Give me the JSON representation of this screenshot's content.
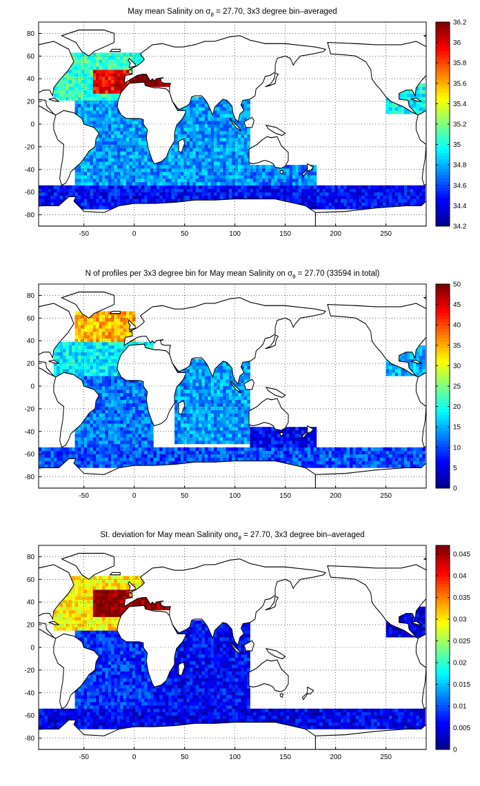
{
  "colormap": [
    "#00008f",
    "#0000ff",
    "#0080ff",
    "#00ffff",
    "#80ff80",
    "#ffff00",
    "#ff8000",
    "#ff0000",
    "#800000"
  ],
  "ocean_color": "#ffffff",
  "land_stroke": "#000000",
  "chart_data": [
    {
      "type": "heatmap",
      "title_prefix": "May mean Salinity on ",
      "title_suffix": " = 27.70, 3x3 degree bin–averaged",
      "xlim": [
        -95,
        290
      ],
      "ylim": [
        -90,
        90
      ],
      "xticks": [
        "-50",
        "0",
        "50",
        "100",
        "150",
        "200",
        "250"
      ],
      "yticks": [
        "80",
        "60",
        "40",
        "20",
        "0",
        "-20",
        "-40",
        "-60",
        "-80"
      ],
      "colorbar": {
        "min": 34.2,
        "max": 36.2,
        "ticks": [
          "36.2",
          "36",
          "35.8",
          "35.6",
          "35.4",
          "35.2",
          "35",
          "34.8",
          "34.6",
          "34.4",
          "34.2"
        ]
      },
      "grid": true,
      "regions": [
        {
          "lon": [
            -80,
            20
          ],
          "lat": [
            20,
            62
          ],
          "value": 35.05
        },
        {
          "lon": [
            -40,
            -5
          ],
          "lat": [
            28,
            48
          ],
          "value": 35.95
        },
        {
          "lon": [
            -20,
            -8
          ],
          "lat": [
            30,
            44
          ],
          "value": 36.1
        },
        {
          "lon": [
            -5,
            38
          ],
          "lat": [
            32,
            44
          ],
          "value": 36.2
        },
        {
          "lon": [
            -60,
            20
          ],
          "lat": [
            -60,
            20
          ],
          "value": 34.75
        },
        {
          "lon": [
            20,
            115
          ],
          "lat": [
            -60,
            25
          ],
          "value": 34.75
        },
        {
          "lon": [
            115,
            180
          ],
          "lat": [
            -60,
            -35
          ],
          "value": 34.7
        },
        {
          "lon": [
            -95,
            290
          ],
          "lat": [
            -75,
            -55
          ],
          "value": 34.45
        },
        {
          "lon": [
            250,
            290
          ],
          "lat": [
            10,
            35
          ],
          "value": 34.95
        }
      ]
    },
    {
      "type": "heatmap",
      "title_prefix": "N of profiles per 3x3 degree bin for May mean Salinity on ",
      "title_suffix": " = 27.70 (33594 in total)",
      "xlim": [
        -95,
        290
      ],
      "ylim": [
        -90,
        90
      ],
      "xticks": [
        "-50",
        "0",
        "50",
        "100",
        "150",
        "200",
        "250"
      ],
      "yticks": [
        "80",
        "60",
        "40",
        "20",
        "0",
        "-20",
        "-40",
        "-60",
        "-80"
      ],
      "colorbar": {
        "min": 0,
        "max": 50,
        "ticks": [
          "50",
          "45",
          "40",
          "35",
          "30",
          "25",
          "20",
          "15",
          "10",
          "5",
          "0"
        ]
      },
      "grid": true,
      "total_profiles": 33594,
      "regions": [
        {
          "lon": [
            -60,
            0
          ],
          "lat": [
            40,
            65
          ],
          "value": 35
        },
        {
          "lon": [
            -80,
            20
          ],
          "lat": [
            10,
            40
          ],
          "value": 18
        },
        {
          "lon": [
            -60,
            20
          ],
          "lat": [
            -55,
            10
          ],
          "value": 12
        },
        {
          "lon": [
            40,
            115
          ],
          "lat": [
            -50,
            25
          ],
          "value": 14
        },
        {
          "lon": [
            -95,
            290
          ],
          "lat": [
            -72,
            -55
          ],
          "value": 10
        },
        {
          "lon": [
            115,
            180
          ],
          "lat": [
            -55,
            -35
          ],
          "value": 6
        },
        {
          "lon": [
            250,
            290
          ],
          "lat": [
            10,
            35
          ],
          "value": 15
        }
      ]
    },
    {
      "type": "heatmap",
      "title_prefix": "St. deviation for May mean Salinity on",
      "title_suffix": " = 27.70, 3x3 degree bin–averaged",
      "xlim": [
        -95,
        290
      ],
      "ylim": [
        -90,
        90
      ],
      "xticks": [
        "-50",
        "0",
        "50",
        "100",
        "150",
        "200",
        "250"
      ],
      "yticks": [
        "80",
        "60",
        "40",
        "20",
        "0",
        "-20",
        "-40",
        "-60",
        "-80"
      ],
      "colorbar": {
        "min": 0,
        "max": 0.047,
        "ticks": [
          "0.045",
          "0.04",
          "0.035",
          "0.03",
          "0.025",
          "0.02",
          "0.015",
          "0.01",
          "0.005",
          "0"
        ]
      },
      "grid": true,
      "regions": [
        {
          "lon": [
            -80,
            20
          ],
          "lat": [
            15,
            62
          ],
          "value": 0.03
        },
        {
          "lon": [
            -40,
            -5
          ],
          "lat": [
            28,
            50
          ],
          "value": 0.047
        },
        {
          "lon": [
            -5,
            38
          ],
          "lat": [
            32,
            44
          ],
          "value": 0.047
        },
        {
          "lon": [
            -60,
            20
          ],
          "lat": [
            -55,
            15
          ],
          "value": 0.008
        },
        {
          "lon": [
            20,
            115
          ],
          "lat": [
            -55,
            25
          ],
          "value": 0.006
        },
        {
          "lon": [
            -95,
            290
          ],
          "lat": [
            -72,
            -55
          ],
          "value": 0.005
        },
        {
          "lon": [
            250,
            290
          ],
          "lat": [
            10,
            35
          ],
          "value": 0.004
        }
      ]
    }
  ]
}
